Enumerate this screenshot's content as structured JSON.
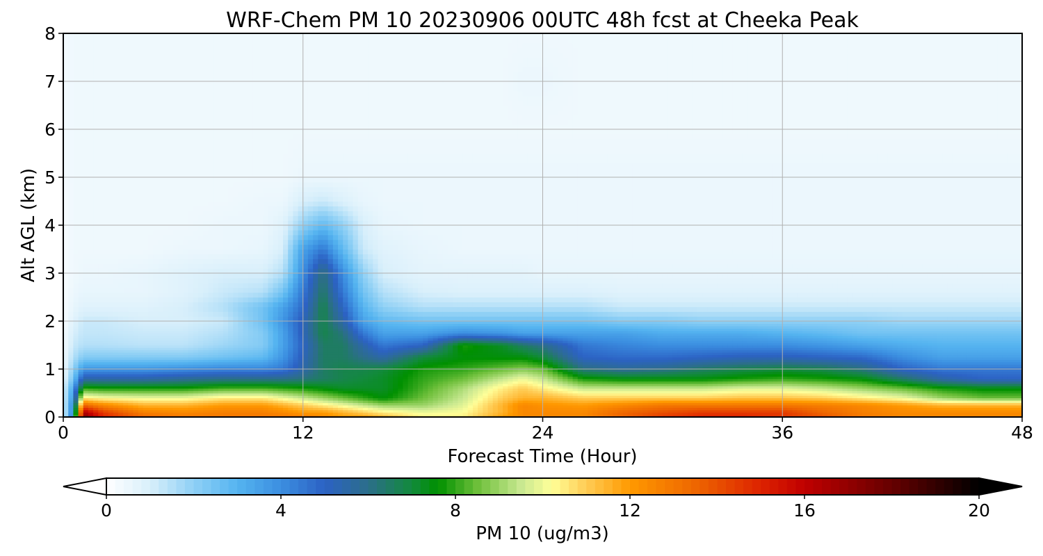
{
  "chart_data": {
    "type": "heatmap",
    "title": "WRF-Chem PM 10  20230906 00UTC 48h fcst at Cheeka Peak",
    "xlabel": "Forecast Time (Hour)",
    "ylabel": "Alt AGL (km)",
    "xlim": [
      0,
      48
    ],
    "ylim": [
      0,
      8
    ],
    "x_ticks": [
      "0",
      "12",
      "24",
      "36",
      "48"
    ],
    "y_ticks": [
      "0",
      "1",
      "2",
      "3",
      "4",
      "5",
      "6",
      "7",
      "8"
    ],
    "grid": true,
    "colorbar": {
      "label": "PM 10  (ug/m3)",
      "range": [
        0,
        20
      ],
      "ticks": [
        "0",
        "4",
        "8",
        "12",
        "16",
        "20"
      ],
      "extend": "both",
      "colors": [
        [
          0,
          "#ffffff"
        ],
        [
          1,
          "#d8effb"
        ],
        [
          2,
          "#8fd0f5"
        ],
        [
          3,
          "#55b4f0"
        ],
        [
          4,
          "#3b8ee0"
        ],
        [
          5,
          "#2c62c4"
        ],
        [
          6,
          "#2c6e8a"
        ],
        [
          7,
          "#128a3c"
        ],
        [
          7.6,
          "#009000"
        ],
        [
          8.5,
          "#6dbf3a"
        ],
        [
          9.5,
          "#c8e890"
        ],
        [
          10.2,
          "#ffff99"
        ],
        [
          11,
          "#ffcc55"
        ],
        [
          12,
          "#ff9900"
        ],
        [
          13.5,
          "#ee6600"
        ],
        [
          15,
          "#dd2200"
        ],
        [
          16,
          "#c00000"
        ],
        [
          18,
          "#660000"
        ],
        [
          20,
          "#000000"
        ]
      ]
    },
    "field": {
      "x": [
        0,
        0.5,
        1,
        2,
        4,
        6,
        8,
        10,
        11,
        12,
        13,
        14,
        15,
        16,
        18,
        20,
        22,
        23,
        24,
        26,
        28,
        30,
        32,
        34,
        36,
        38,
        40,
        42,
        44,
        46,
        48
      ],
      "y": [
        0,
        0.1,
        0.25,
        0.4,
        0.6,
        0.8,
        1.0,
        1.25,
        1.5,
        1.75,
        2.0,
        2.3,
        2.6,
        3.0,
        3.5,
        4.0,
        4.5,
        5.0,
        6.0,
        7.0,
        8.0
      ],
      "values": [
        [
          0.8,
          5.0,
          17.5,
          15.0,
          13.5,
          13.0,
          13.0,
          13.0,
          13.0,
          13.0,
          12.5,
          12.0,
          12.0,
          11.5,
          10.5,
          10.5,
          12.0,
          12.5,
          12.5,
          12.5,
          13.5,
          14.5,
          15.0,
          15.0,
          14.5,
          14.0,
          13.0,
          12.5,
          12.5,
          12.5,
          12.5
        ],
        [
          0.8,
          4.5,
          16.5,
          14.5,
          12.8,
          12.5,
          12.8,
          12.8,
          12.5,
          12.0,
          12.0,
          11.5,
          11.0,
          10.5,
          10.0,
          10.2,
          11.5,
          12.5,
          12.5,
          12.5,
          13.5,
          14.0,
          14.5,
          14.5,
          14.5,
          13.5,
          12.8,
          12.5,
          12.5,
          12.5,
          12.5
        ],
        [
          0.8,
          4.5,
          13.5,
          12.5,
          11.5,
          11.5,
          12.0,
          12.0,
          11.5,
          11.0,
          10.5,
          10.0,
          9.5,
          9.0,
          9.0,
          9.8,
          11.5,
          12.5,
          12.2,
          12.0,
          12.5,
          13.0,
          13.0,
          13.0,
          13.0,
          12.8,
          12.5,
          12.0,
          11.5,
          11.5,
          11.5
        ],
        [
          0.8,
          4.0,
          10.5,
          10.2,
          10.0,
          10.0,
          10.5,
          10.5,
          10.0,
          9.5,
          9.0,
          8.5,
          8.0,
          7.5,
          8.5,
          9.5,
          11.0,
          11.5,
          11.5,
          11.0,
          11.0,
          11.0,
          11.0,
          11.2,
          11.2,
          11.0,
          10.5,
          10.0,
          9.0,
          8.5,
          8.5
        ],
        [
          0.8,
          3.5,
          8.0,
          7.8,
          7.8,
          7.8,
          8.2,
          8.2,
          8.0,
          7.8,
          7.5,
          7.2,
          7.2,
          7.2,
          8.2,
          9.2,
          10.5,
          11.0,
          10.5,
          9.5,
          9.5,
          9.5,
          9.5,
          9.8,
          9.8,
          9.5,
          9.0,
          8.5,
          7.8,
          7.5,
          7.5
        ],
        [
          0.6,
          2.5,
          5.5,
          5.5,
          5.5,
          5.8,
          6.0,
          6.0,
          6.0,
          6.2,
          6.5,
          6.8,
          7.0,
          7.2,
          8.0,
          8.5,
          9.5,
          10.0,
          9.5,
          7.8,
          7.5,
          7.5,
          7.5,
          7.8,
          8.0,
          7.8,
          7.5,
          6.5,
          5.5,
          5.0,
          5.0
        ],
        [
          0.5,
          2.0,
          3.8,
          3.8,
          3.8,
          4.0,
          4.2,
          4.2,
          4.5,
          5.5,
          6.5,
          6.8,
          6.8,
          7.0,
          7.8,
          8.0,
          8.5,
          8.8,
          8.5,
          6.2,
          5.8,
          6.0,
          6.5,
          6.8,
          7.0,
          6.8,
          6.2,
          5.0,
          4.5,
          4.5,
          4.5
        ],
        [
          0.4,
          1.5,
          2.2,
          2.2,
          2.2,
          2.2,
          2.5,
          2.8,
          3.8,
          5.2,
          6.5,
          6.5,
          6.0,
          5.5,
          7.0,
          7.5,
          7.5,
          7.5,
          7.0,
          5.0,
          4.8,
          4.8,
          5.0,
          5.2,
          5.2,
          5.0,
          4.8,
          4.0,
          3.5,
          3.5,
          3.5
        ],
        [
          0.3,
          1.2,
          1.5,
          1.5,
          1.4,
          1.4,
          1.8,
          2.2,
          3.5,
          5.0,
          6.5,
          6.5,
          5.5,
          4.5,
          5.0,
          7.8,
          7.2,
          6.5,
          6.0,
          4.5,
          4.2,
          4.0,
          4.0,
          4.0,
          4.0,
          3.8,
          3.5,
          3.2,
          3.0,
          3.0,
          3.0
        ],
        [
          0.3,
          1.0,
          1.3,
          1.3,
          1.2,
          1.2,
          1.5,
          2.2,
          3.5,
          5.2,
          6.8,
          6.2,
          4.5,
          3.5,
          3.5,
          4.0,
          3.8,
          3.5,
          3.5,
          3.5,
          3.5,
          3.2,
          3.2,
          3.2,
          3.0,
          2.8,
          2.5,
          2.5,
          2.5,
          2.5,
          2.5
        ],
        [
          0.2,
          0.8,
          1.2,
          1.2,
          1.0,
          1.0,
          1.2,
          2.5,
          3.8,
          5.2,
          6.8,
          5.5,
          3.5,
          2.8,
          2.5,
          2.5,
          2.5,
          2.5,
          2.5,
          2.5,
          2.2,
          2.2,
          2.0,
          2.0,
          2.0,
          2.0,
          2.0,
          1.8,
          1.8,
          1.8,
          1.8
        ],
        [
          0.2,
          0.6,
          0.8,
          0.8,
          0.8,
          1.0,
          1.5,
          2.5,
          3.5,
          4.8,
          6.8,
          5.0,
          3.0,
          2.0,
          1.5,
          1.5,
          1.5,
          1.5,
          1.5,
          1.5,
          1.2,
          1.2,
          1.2,
          1.2,
          1.2,
          1.2,
          1.2,
          1.2,
          1.2,
          1.2,
          1.2
        ],
        [
          0.2,
          0.5,
          0.6,
          0.6,
          0.6,
          0.8,
          1.2,
          1.5,
          2.5,
          4.5,
          6.5,
          4.5,
          2.5,
          1.5,
          1.0,
          0.9,
          0.9,
          0.9,
          0.9,
          0.9,
          0.8,
          0.8,
          0.8,
          0.8,
          0.8,
          0.8,
          0.8,
          0.8,
          0.8,
          0.8,
          0.8
        ],
        [
          0.2,
          0.4,
          0.5,
          0.5,
          0.6,
          0.8,
          1.0,
          1.0,
          1.5,
          4.0,
          6.2,
          4.0,
          2.0,
          1.0,
          0.7,
          0.7,
          0.7,
          0.7,
          0.6,
          0.6,
          0.6,
          0.6,
          0.6,
          0.6,
          0.6,
          0.6,
          0.6,
          0.6,
          0.6,
          0.6,
          0.6
        ],
        [
          0.2,
          0.4,
          0.4,
          0.4,
          0.4,
          0.5,
          0.5,
          0.6,
          1.0,
          3.5,
          4.5,
          2.8,
          1.2,
          0.8,
          0.6,
          0.5,
          0.5,
          0.5,
          0.5,
          0.5,
          0.5,
          0.5,
          0.5,
          0.5,
          0.5,
          0.5,
          0.5,
          0.5,
          0.5,
          0.5,
          0.5
        ],
        [
          0.2,
          0.4,
          0.4,
          0.4,
          0.4,
          0.4,
          0.5,
          0.5,
          0.8,
          2.0,
          2.8,
          2.0,
          1.0,
          0.6,
          0.5,
          0.5,
          0.5,
          0.5,
          0.5,
          0.5,
          0.5,
          0.5,
          0.5,
          0.5,
          0.5,
          0.5,
          0.5,
          0.5,
          0.5,
          0.5,
          0.5
        ],
        [
          0.2,
          0.4,
          0.4,
          0.4,
          0.4,
          0.4,
          0.4,
          0.5,
          0.5,
          1.0,
          1.2,
          0.9,
          0.6,
          0.5,
          0.5,
          0.5,
          0.5,
          0.5,
          0.5,
          0.5,
          0.5,
          0.5,
          0.5,
          0.5,
          0.5,
          0.5,
          0.5,
          0.5,
          0.5,
          0.5,
          0.5
        ],
        [
          0.3,
          0.4,
          0.4,
          0.4,
          0.4,
          0.4,
          0.4,
          0.4,
          0.4,
          0.5,
          0.5,
          0.5,
          0.5,
          0.5,
          0.5,
          0.5,
          0.5,
          0.5,
          0.5,
          0.5,
          0.5,
          0.5,
          0.5,
          0.5,
          0.5,
          0.5,
          0.5,
          0.5,
          0.5,
          0.5,
          0.5
        ],
        [
          0.3,
          0.4,
          0.4,
          0.4,
          0.4,
          0.4,
          0.4,
          0.4,
          0.4,
          0.4,
          0.4,
          0.4,
          0.4,
          0.4,
          0.4,
          0.4,
          0.4,
          0.4,
          0.4,
          0.4,
          0.4,
          0.4,
          0.4,
          0.4,
          0.4,
          0.4,
          0.4,
          0.4,
          0.4,
          0.4,
          0.4
        ],
        [
          0.3,
          0.4,
          0.4,
          0.4,
          0.4,
          0.4,
          0.4,
          0.4,
          0.4,
          0.4,
          0.4,
          0.4,
          0.4,
          0.4,
          0.4,
          0.4,
          0.4,
          0.5,
          0.5,
          0.4,
          0.4,
          0.4,
          0.4,
          0.4,
          0.4,
          0.4,
          0.4,
          0.4,
          0.4,
          0.4,
          0.4
        ],
        [
          0.3,
          0.4,
          0.4,
          0.4,
          0.4,
          0.4,
          0.4,
          0.4,
          0.4,
          0.4,
          0.4,
          0.4,
          0.4,
          0.4,
          0.4,
          0.4,
          0.4,
          0.4,
          0.4,
          0.4,
          0.4,
          0.4,
          0.4,
          0.4,
          0.4,
          0.4,
          0.4,
          0.4,
          0.4,
          0.4,
          0.4
        ]
      ]
    }
  }
}
